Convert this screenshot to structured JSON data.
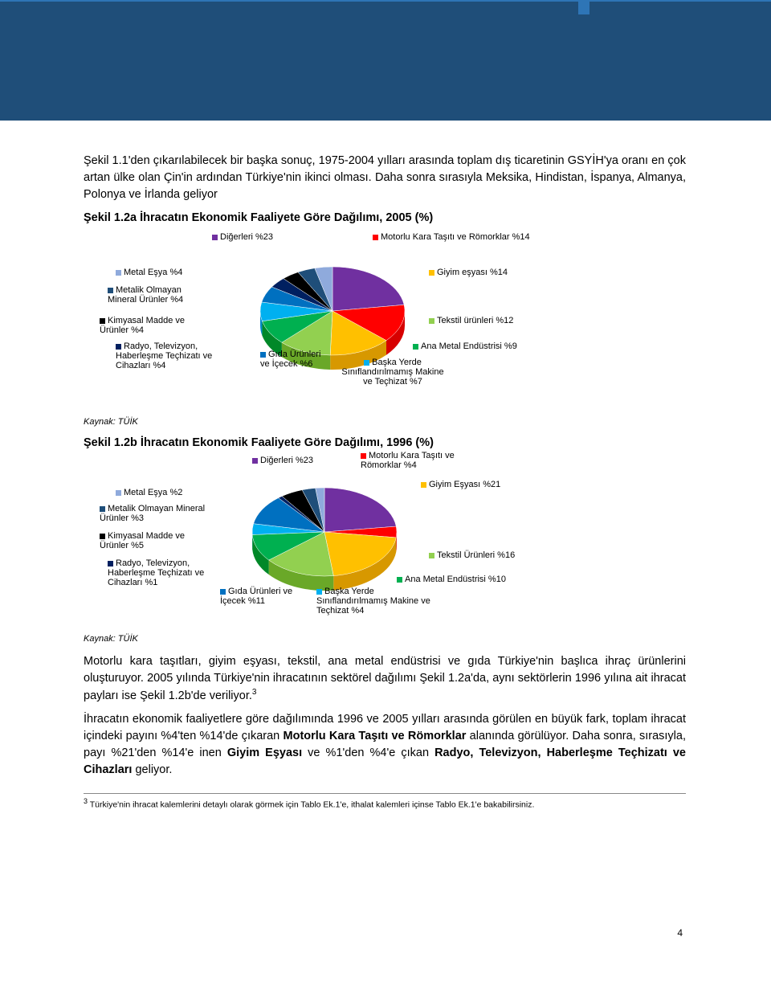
{
  "header": {
    "band_color": "#1f4e79",
    "accent_color": "#2e75b6"
  },
  "paragraphs": {
    "p1": "Şekil 1.1'den çıkarılabilecek bir başka sonuç, 1975-2004 yılları arasında toplam dış ticaretinin GSYİH'ya oranı en çok artan ülke olan Çin'in ardından Türkiye'nin ikinci olması. Daha sonra sırasıyla Meksika, Hindistan, İspanya, Almanya, Polonya ve İrlanda geliyor",
    "p2_a": "Motorlu kara taşıtları, giyim eşyası, tekstil, ana metal endüstrisi ve gıda Türkiye'nin başlıca ihraç ürünlerini oluşturuyor. 2005 yılında Türkiye'nin ihracatının sektörel dağılımı Şekil 1.2a'da,  aynı sektörlerin 1996 yılına ait ihracat payları ise Şekil 1.2b'de veriliyor.",
    "p3_a": "İhracatın ekonomik faaliyetlere göre dağılımında 1996 ve 2005 yılları arasında görülen en büyük fark, toplam ihracat içindeki payını %4'ten %14'de çıkaran ",
    "p3_b": "Motorlu Kara Taşıtı ve Römorklar",
    "p3_c": " alanında görülüyor. Daha sonra, sırasıyla, payı %21'den %14'e inen ",
    "p3_d": "Giyim Eşyası",
    "p3_e": " ve %1'den %4'e çıkan ",
    "p3_f": "Radyo, Televizyon, Haberleşme Teçhizatı ve Cihazları",
    "p3_g": " geliyor."
  },
  "chart_a": {
    "title": "Şekil 1.2a İhracatın Ekonomik Faaliyete Göre Dağılımı, 2005 (%)",
    "type": "pie",
    "slices": [
      {
        "label": "Diğerleri %23",
        "value": 23,
        "color": "#7030a0"
      },
      {
        "label": "Motorlu  Kara Taşıtı ve Römorklar %14",
        "value": 14,
        "color": "#ff0000"
      },
      {
        "label": "Giyim eşyası %14",
        "value": 14,
        "color": "#ffc000"
      },
      {
        "label": "Tekstil ürünleri %12",
        "value": 12,
        "color": "#92d050"
      },
      {
        "label": "Ana Metal Endüstrisi %9",
        "value": 9,
        "color": "#00b050"
      },
      {
        "label": "Başka Yerde Sınıflandırılmamış Makine ve Teçhizat %7",
        "value": 7,
        "color": "#00b0f0"
      },
      {
        "label": "Gıda Ürünleri ve İçecek %6",
        "value": 6,
        "color": "#0070c0"
      },
      {
        "label": "Radyo, Televizyon, Haberleşme Teçhizatı ve Cihazları %4",
        "value": 4,
        "color": "#002060"
      },
      {
        "label": "Kimyasal Madde ve Ürünler %4",
        "value": 4,
        "color": "#000000"
      },
      {
        "label": "Metalik Olmayan Mineral Ürünler %4",
        "value": 4,
        "color": "#1f4e79"
      },
      {
        "label": "Metal Eşya %4",
        "value": 4,
        "color": "#8faadc"
      }
    ],
    "source": "Kaynak: TÜİK",
    "bg": "#ffffff"
  },
  "chart_b": {
    "title": "Şekil 1.2b İhracatın Ekonomik Faaliyete Göre Dağılımı, 1996 (%)",
    "type": "pie",
    "slices": [
      {
        "label": "Diğerleri %23",
        "value": 23,
        "color": "#7030a0"
      },
      {
        "label": "Motorlu Kara Taşıtı ve Römorklar %4",
        "value": 4,
        "color": "#ff0000"
      },
      {
        "label": "Giyim Eşyası %21",
        "value": 21,
        "color": "#ffc000"
      },
      {
        "label": "Tekstil Ürünleri %16",
        "value": 16,
        "color": "#92d050"
      },
      {
        "label": "Ana Metal Endüstrisi %10",
        "value": 10,
        "color": "#00b050"
      },
      {
        "label": "Başka Yerde Sınıflandırılmamış Makine ve Teçhizat %4",
        "value": 4,
        "color": "#00b0f0"
      },
      {
        "label": "Gıda Ürünleri ve İçecek %11",
        "value": 11,
        "color": "#0070c0"
      },
      {
        "label": "Radyo, Televizyon, Haberleşme Teçhizatı ve Cihazları %1",
        "value": 1,
        "color": "#002060"
      },
      {
        "label": "Kimyasal Madde ve Ürünler %5",
        "value": 5,
        "color": "#000000"
      },
      {
        "label": "Metalik Olmayan Mineral Ürünler %3",
        "value": 3,
        "color": "#1f4e79"
      },
      {
        "label": "Metal Eşya %2",
        "value": 2,
        "color": "#8faadc"
      }
    ],
    "source": "Kaynak: TÜİK",
    "bg": "#ffffff"
  },
  "labels_a": {
    "digerleri": "Diğerleri %23",
    "motorlu": "Motorlu  Kara Taşıtı ve Römorklar %14",
    "metal_esya": "Metal Eşya %4",
    "giyim": "Giyim eşyası %14",
    "metalik": "Metalik Olmayan Mineral Ürünler %4",
    "kimyasal": "Kimyasal Madde ve Ürünler %4",
    "tekstil": "Tekstil ürünleri %12",
    "radyo": "Radyo, Televizyon, Haberleşme Teçhizatı ve Cihazları %4",
    "gida": "Gıda Ürünleri ve İçecek %6",
    "ana_metal": "Ana Metal Endüstrisi %9",
    "baska": "Başka Yerde Sınıflandırılmamış Makine ve Teçhizat %7"
  },
  "labels_b": {
    "digerleri": "Diğerleri %23",
    "motorlu": "Motorlu Kara Taşıtı ve Römorklar %4",
    "metal_esya": "Metal Eşya %2",
    "giyim": "Giyim Eşyası %21",
    "metalik": "Metalik Olmayan Mineral Ürünler %3",
    "kimyasal": "Kimyasal Madde ve Ürünler %5",
    "tekstil": "Tekstil Ürünleri %16",
    "radyo": "Radyo, Televizyon, Haberleşme Teçhizatı ve Cihazları %1",
    "gida": "Gıda Ürünleri ve İçecek %11",
    "ana_metal": "Ana Metal Endüstrisi %10",
    "baska": "Başka Yerde Sınıflandırılmamış Makine ve Teçhizat %4"
  },
  "footnote": {
    "num": "3",
    "text": "  Türkiye'nin ihracat kalemlerini detaylı olarak görmek için Tablo Ek.1'e, ithalat kalemleri içinse Tablo Ek.1'e bakabilirsiniz."
  },
  "page_number": "4"
}
